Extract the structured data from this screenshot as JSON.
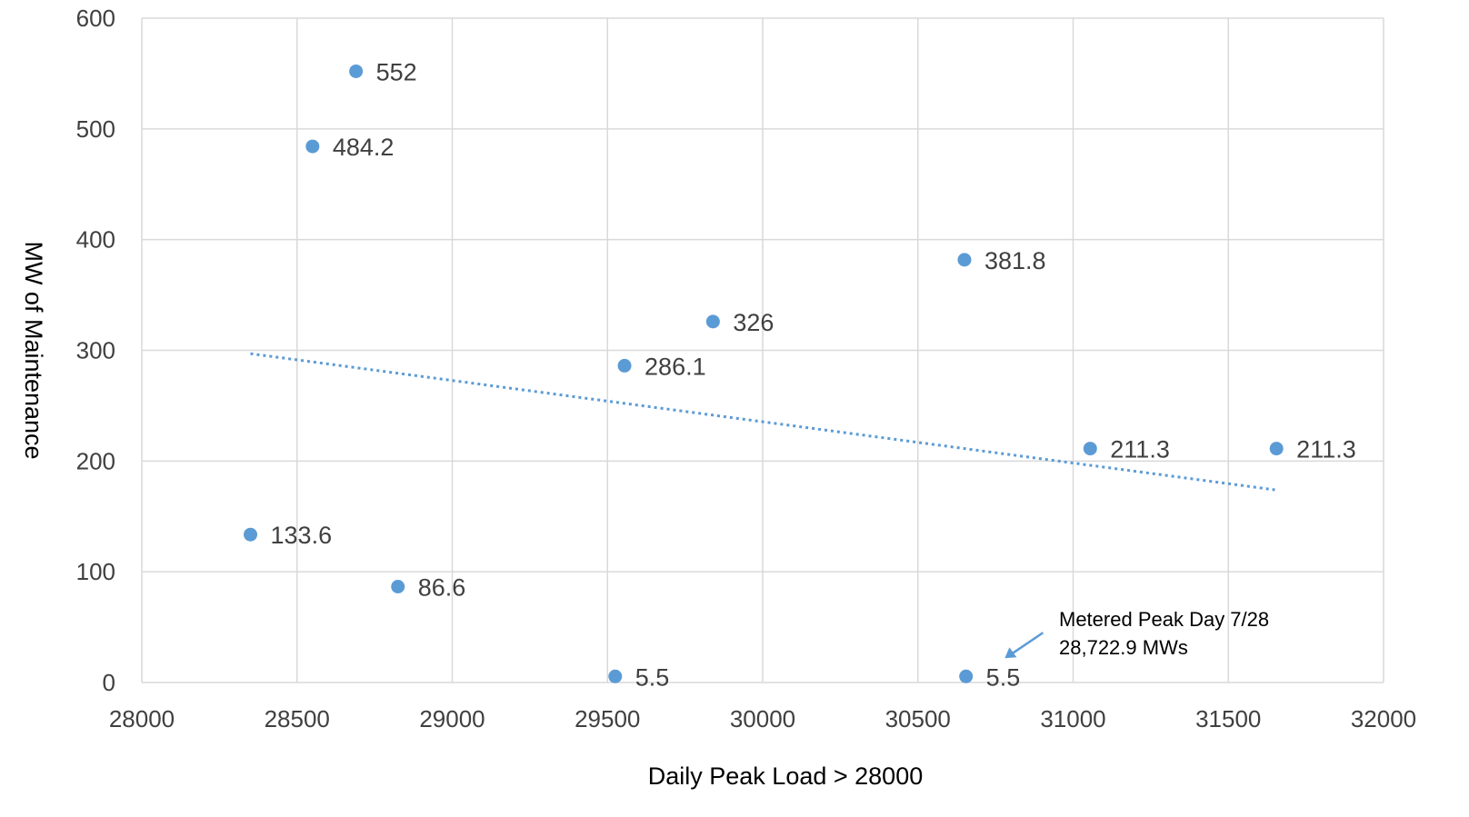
{
  "chart_data": {
    "type": "scatter",
    "title": "",
    "xlabel": "Daily Peak Load > 28000",
    "ylabel": "MW of Maintenance",
    "xlim": [
      28000,
      32000
    ],
    "ylim": [
      0,
      600
    ],
    "x_ticks": [
      28000,
      28500,
      29000,
      29500,
      30000,
      30500,
      31000,
      31500,
      32000
    ],
    "y_ticks": [
      0,
      100,
      200,
      300,
      400,
      500,
      600
    ],
    "grid": true,
    "legend": "none",
    "point_color": "#5B9BD5",
    "trendline": {
      "type": "linear",
      "style": "dotted",
      "color": "#5B9BD5",
      "x_start": 28350,
      "y_start": 297,
      "x_end": 31650,
      "y_end": 174
    },
    "series": [
      {
        "points": [
          {
            "x": 28690,
            "y": 552,
            "label": "552"
          },
          {
            "x": 28550,
            "y": 484.2,
            "label": "484.2"
          },
          {
            "x": 30650,
            "y": 381.8,
            "label": "381.8"
          },
          {
            "x": 29840,
            "y": 326,
            "label": "326"
          },
          {
            "x": 29555,
            "y": 286.1,
            "label": "286.1"
          },
          {
            "x": 31055,
            "y": 211.3,
            "label": "211.3"
          },
          {
            "x": 31655,
            "y": 211.3,
            "label": "211.3"
          },
          {
            "x": 28350,
            "y": 133.6,
            "label": "133.6"
          },
          {
            "x": 28825,
            "y": 86.6,
            "label": "86.6"
          },
          {
            "x": 29525,
            "y": 5.5,
            "label": "5.5"
          },
          {
            "x": 30655,
            "y": 5.5,
            "label": "5.5"
          }
        ]
      }
    ],
    "annotations": [
      {
        "line1": "Metered Peak Day 7/28",
        "line2": "28,722.9 MWs",
        "points_to_x": 30780,
        "points_to_y": 22
      }
    ]
  }
}
